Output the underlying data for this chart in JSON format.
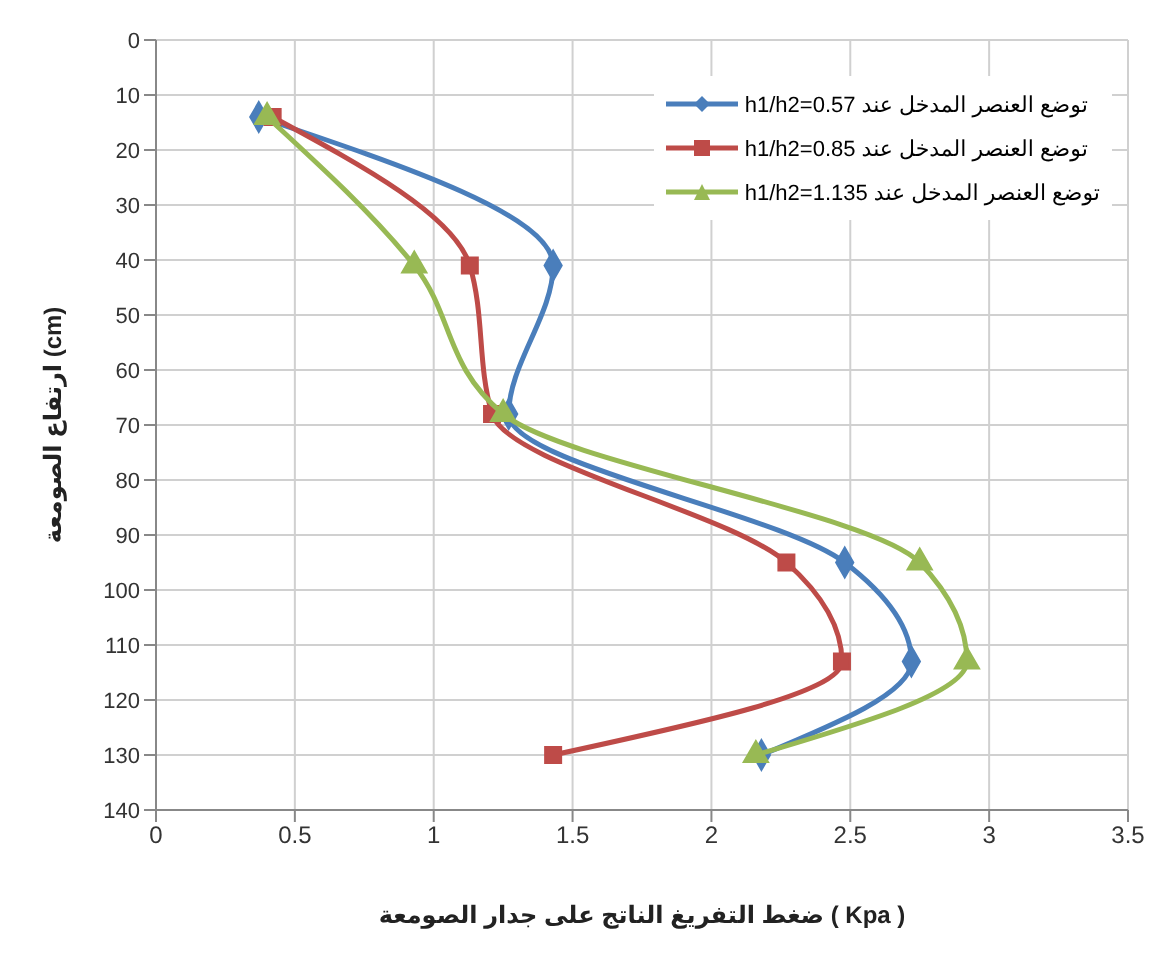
{
  "chart_data": {
    "type": "line",
    "xlabel": "ضغط التفريغ الناتج على جدار الصومعة ( Kpa )",
    "ylabel": "ارتفاع الصومعة (cm)",
    "xlim": [
      0,
      3.5
    ],
    "xticks": [
      0,
      0.5,
      1,
      1.5,
      2,
      2.5,
      3,
      3.5
    ],
    "ylim": [
      140,
      0
    ],
    "yticks": [
      0,
      10,
      20,
      30,
      40,
      50,
      60,
      70,
      80,
      90,
      100,
      110,
      120,
      130,
      140
    ],
    "grid": true,
    "legend": "top right",
    "series": [
      {
        "name": "توضع العنصر المدخل عند h1/h2=0.57",
        "color": "#4a7ebb",
        "marker": "diamond",
        "x": [
          0.37,
          1.43,
          1.27,
          2.48,
          2.72,
          2.18
        ],
        "values": [
          14,
          41,
          68,
          95,
          113,
          130
        ]
      },
      {
        "name": "توضع العنصر المدخل عند h1/h2=0.85",
        "color": "#be4b48",
        "marker": "square",
        "x": [
          0.42,
          1.13,
          1.21,
          2.27,
          2.47,
          1.43
        ],
        "values": [
          14,
          41,
          68,
          95,
          113,
          130
        ]
      },
      {
        "name": "توضع العنصر المدخل عند h1/h2=1.135",
        "color": "#98b954",
        "marker": "triangle",
        "x": [
          0.4,
          0.93,
          1.25,
          2.75,
          2.92,
          2.16
        ],
        "values": [
          14,
          41,
          68,
          95,
          113,
          130
        ]
      }
    ]
  }
}
